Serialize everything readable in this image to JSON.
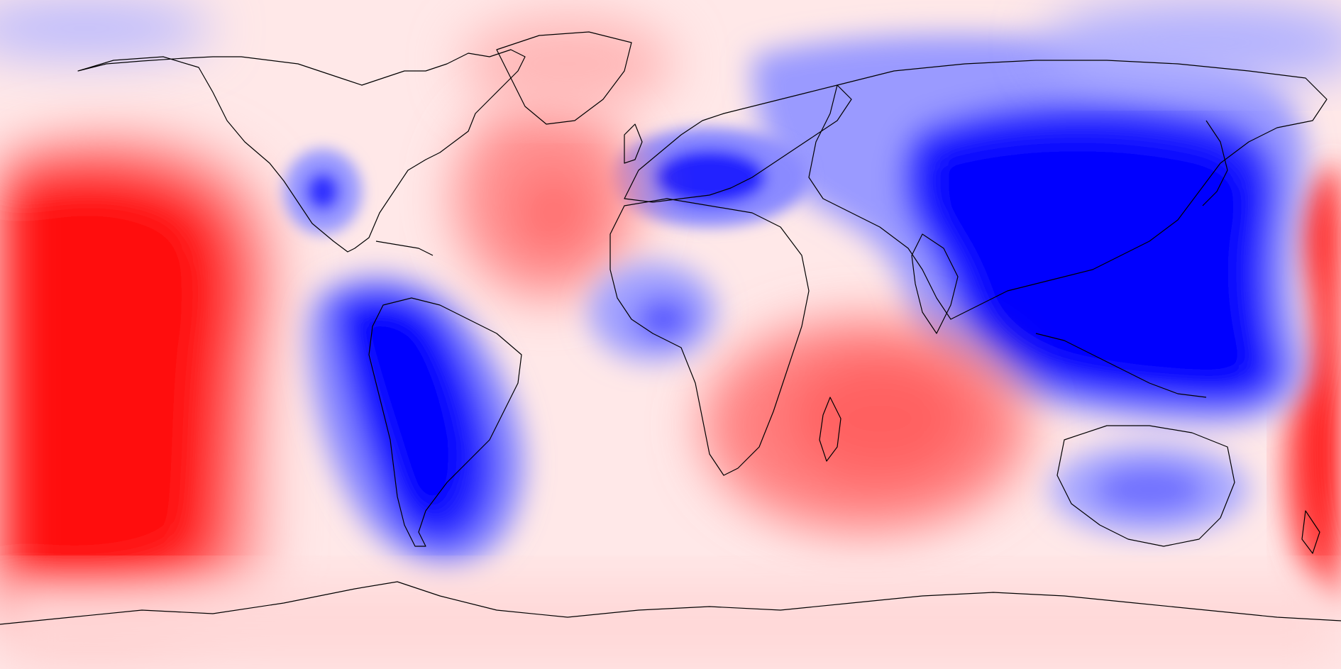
{
  "map": {
    "projection": "equirectangular",
    "extent": "global",
    "colormap": {
      "negative": "#0000ff",
      "neutral": "#ffffff",
      "positive": "#ff0000",
      "style": "filled contours, diverging blue-white-red"
    },
    "coastline_color": "#000000",
    "grid": false,
    "legend": "none",
    "title": "",
    "anomaly_regions": [
      {
        "name": "central-pacific-positive",
        "sign": "positive",
        "strength": 1.0
      },
      {
        "name": "south-america-negative",
        "sign": "negative",
        "strength": 1.0
      },
      {
        "name": "asia-maritime-continent-negative",
        "sign": "negative",
        "strength": 1.0
      },
      {
        "name": "europe-alps-negative",
        "sign": "negative",
        "strength": 0.8
      },
      {
        "name": "indian-ocean-positive",
        "sign": "positive",
        "strength": 0.55
      },
      {
        "name": "north-atlantic-positive",
        "sign": "positive",
        "strength": 0.45
      },
      {
        "name": "northeast-pacific-negative-spot",
        "sign": "negative",
        "strength": 0.85
      },
      {
        "name": "australia-negative",
        "sign": "negative",
        "strength": 0.5
      },
      {
        "name": "west-africa-negative",
        "sign": "negative",
        "strength": 0.55
      },
      {
        "name": "western-pacific-positive-edge",
        "sign": "positive",
        "strength": 0.95
      },
      {
        "name": "greenland-positive",
        "sign": "positive",
        "strength": 0.3
      },
      {
        "name": "antarctica-weak-positive",
        "sign": "positive",
        "strength": 0.2
      }
    ]
  }
}
